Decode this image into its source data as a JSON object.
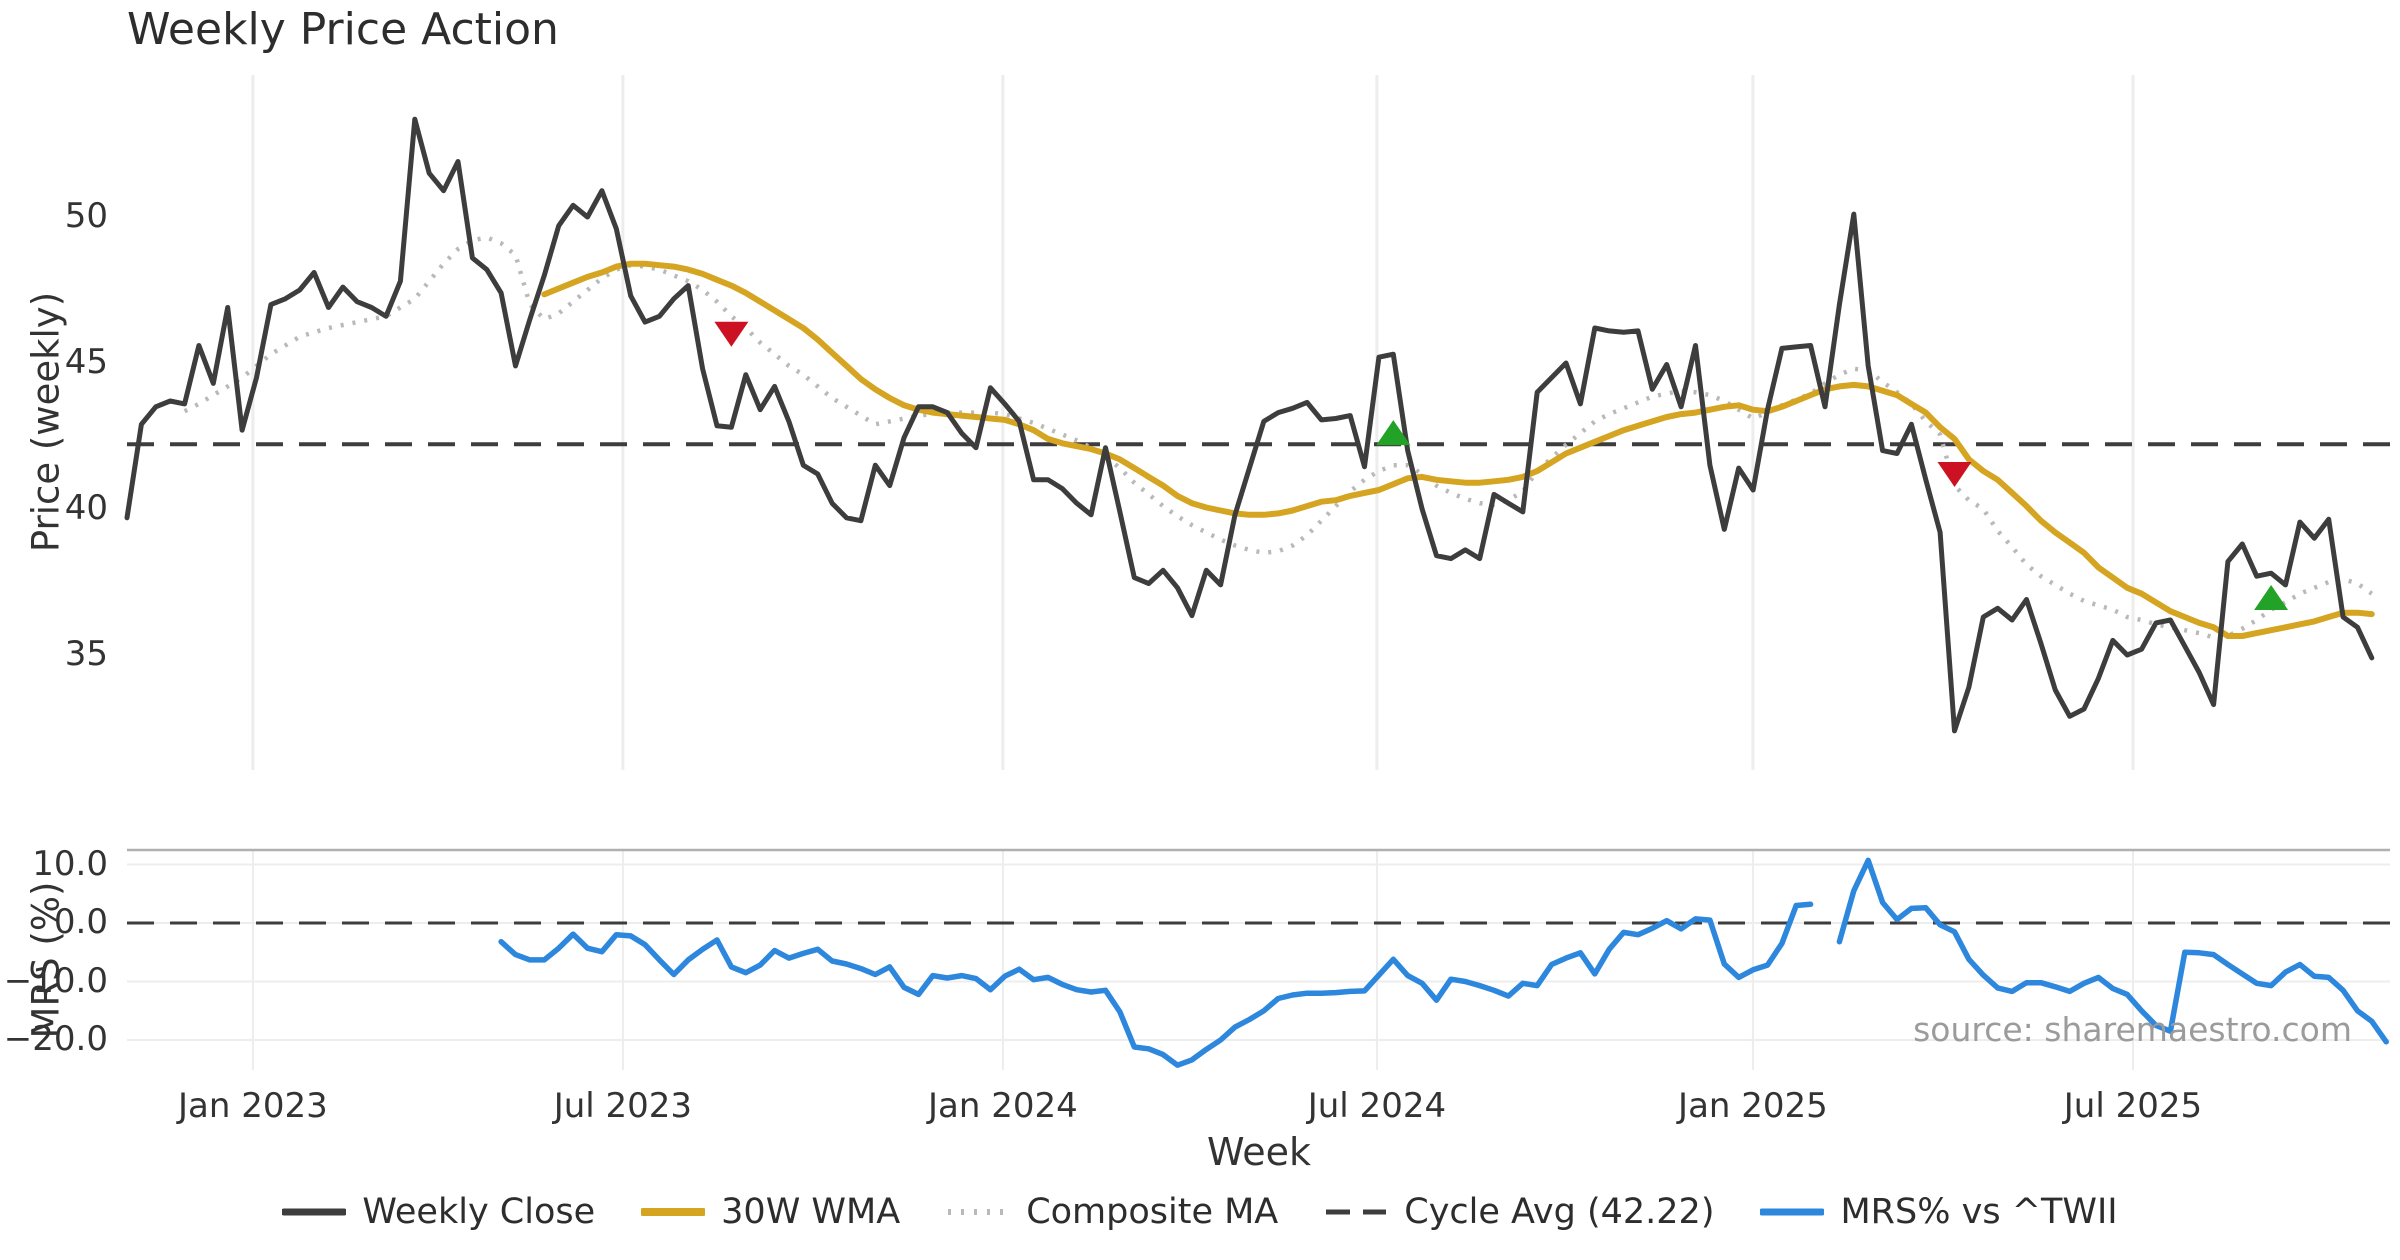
{
  "title": "Weekly Price Action",
  "source": "source: sharemaestro.com",
  "xlabel": "Week",
  "colors": {
    "close": "#3d3d3d",
    "wma": "#d5a421",
    "composite": "#b9b9b9",
    "cycle_dash": "#3d3d3d",
    "mrs": "#2d87dd",
    "sell_marker": "#cc1122",
    "buy_marker": "#22a226",
    "grid": "#ededed",
    "panel_border": "#b0b0b0",
    "text": "#333333",
    "source_text": "#9b9b9b"
  },
  "top_panel": {
    "ylabel": "Price (weekly)",
    "yticks": [
      {
        "label": "50",
        "value": 50
      },
      {
        "label": "45",
        "value": 45
      },
      {
        "label": "40",
        "value": 40
      },
      {
        "label": "35",
        "value": 35
      }
    ],
    "cycle_avg_value": 42.22
  },
  "bottom_panel": {
    "ylabel": "MRS (%)",
    "yticks": [
      {
        "label": "10.0",
        "value": 10
      },
      {
        "label": "0.0",
        "value": 0
      },
      {
        "label": "−10.0",
        "value": -10
      },
      {
        "label": "−20.0",
        "value": -20
      }
    ],
    "zero_line_value": 0
  },
  "xticks": [
    {
      "label": "Jan 2023",
      "week": 8.75
    },
    {
      "label": "Jul 2023",
      "week": 34.46
    },
    {
      "label": "Jan 2024",
      "week": 60.87
    },
    {
      "label": "Jul 2024",
      "week": 86.86
    },
    {
      "label": "Jan 2025",
      "week": 112.99
    },
    {
      "label": "Jul 2025",
      "week": 139.4
    }
  ],
  "legend": [
    {
      "label": "Weekly Close",
      "style": "close"
    },
    {
      "label": "30W WMA",
      "style": "wma"
    },
    {
      "label": "Composite MA",
      "style": "composite"
    },
    {
      "label": "Cycle Avg (42.22)",
      "style": "cycle_dash"
    },
    {
      "label": "MRS% vs ^TWII",
      "style": "mrs"
    }
  ],
  "chart_data": {
    "type": "line",
    "x_axis": "weekly index (0 = first plotted week, ~Nov 2022; month gridlines per xticks)",
    "top_ylim": [
      31.0,
      54.9
    ],
    "bottom_ylim": [
      -25.1,
      12.5
    ],
    "grid": "vertical month gridlines on price panel; horizontal tick gridlines on MRS panel",
    "legend_position": "bottom center",
    "series": [
      {
        "name": "Weekly Close",
        "panel": "price",
        "start_week": 0,
        "values": [
          39.7,
          42.9,
          43.5,
          43.7,
          43.6,
          45.6,
          44.3,
          46.9,
          42.7,
          44.5,
          47.0,
          47.2,
          47.5,
          48.1,
          46.9,
          47.6,
          47.1,
          46.9,
          46.6,
          47.8,
          53.35,
          51.5,
          50.9,
          51.9,
          48.6,
          48.2,
          47.4,
          44.9,
          46.5,
          48.0,
          49.7,
          50.4,
          50.0,
          50.9,
          49.6,
          47.3,
          46.4,
          46.6,
          47.2,
          47.65,
          44.8,
          42.85,
          42.8,
          44.6,
          43.4,
          44.2,
          43.0,
          41.5,
          41.2,
          40.2,
          39.7,
          39.6,
          41.5,
          40.8,
          42.45,
          43.5,
          43.5,
          43.3,
          42.6,
          42.1,
          44.15,
          43.6,
          43.0,
          41.0,
          41.0,
          40.7,
          40.2,
          39.8,
          42.1,
          39.9,
          37.65,
          37.45,
          37.9,
          37.3,
          36.35,
          37.9,
          37.4,
          39.8,
          41.4,
          43.0,
          43.3,
          43.45,
          43.65,
          43.05,
          43.1,
          43.2,
          41.45,
          45.2,
          45.3,
          42.0,
          40.0,
          38.4,
          38.3,
          38.6,
          38.3,
          40.5,
          40.2,
          39.9,
          44.0,
          44.5,
          45.0,
          43.6,
          46.2,
          46.1,
          46.05,
          46.1,
          44.1,
          44.95,
          43.5,
          45.6,
          41.5,
          39.3,
          41.4,
          40.65,
          43.4,
          45.5,
          45.55,
          45.6,
          43.5,
          47.0,
          50.1,
          44.9,
          42.0,
          41.9,
          42.9,
          41.0,
          39.2,
          32.4,
          33.9,
          36.3,
          36.6,
          36.2,
          36.9,
          35.4,
          33.8,
          32.9,
          33.15,
          34.2,
          35.5,
          35.0,
          35.2,
          36.1,
          36.2,
          35.3,
          34.4,
          33.3,
          38.2,
          38.8,
          37.7,
          37.8,
          37.4,
          39.55,
          39.0,
          39.65,
          36.3,
          35.95,
          34.9
        ]
      },
      {
        "name": "30W WMA",
        "panel": "price",
        "start_week": 29,
        "values": [
          47.35,
          47.55,
          47.75,
          47.95,
          48.1,
          48.3,
          48.4,
          48.4,
          48.35,
          48.3,
          48.2,
          48.05,
          47.85,
          47.65,
          47.4,
          47.1,
          46.8,
          46.5,
          46.2,
          45.8,
          45.35,
          44.9,
          44.45,
          44.1,
          43.8,
          43.55,
          43.4,
          43.3,
          43.25,
          43.2,
          43.15,
          43.1,
          43.05,
          42.9,
          42.7,
          42.4,
          42.25,
          42.15,
          42.05,
          41.9,
          41.7,
          41.4,
          41.1,
          40.8,
          40.45,
          40.2,
          40.05,
          39.95,
          39.85,
          39.8,
          39.8,
          39.85,
          39.95,
          40.1,
          40.25,
          40.3,
          40.45,
          40.55,
          40.65,
          40.85,
          41.05,
          41.1,
          41.0,
          40.95,
          40.9,
          40.9,
          40.95,
          41.0,
          41.1,
          41.3,
          41.6,
          41.9,
          42.1,
          42.3,
          42.5,
          42.7,
          42.85,
          43.0,
          43.15,
          43.25,
          43.3,
          43.4,
          43.5,
          43.55,
          43.4,
          43.35,
          43.5,
          43.7,
          43.9,
          44.1,
          44.2,
          44.25,
          44.2,
          44.05,
          43.9,
          43.6,
          43.3,
          42.8,
          42.4,
          41.7,
          41.3,
          41.0,
          40.55,
          40.1,
          39.6,
          39.2,
          38.85,
          38.5,
          38.0,
          37.65,
          37.3,
          37.1,
          36.8,
          36.5,
          36.3,
          36.1,
          35.95,
          35.65,
          35.65,
          35.75,
          35.85,
          35.95,
          36.05,
          36.15,
          36.3,
          36.45,
          36.45,
          36.4
        ]
      },
      {
        "name": "Composite MA",
        "panel": "price",
        "start_week": 4,
        "values": [
          43.35,
          43.6,
          43.9,
          44.2,
          44.5,
          44.9,
          45.3,
          45.6,
          45.9,
          46.05,
          46.2,
          46.3,
          46.4,
          46.5,
          46.6,
          46.9,
          47.2,
          47.8,
          48.4,
          48.9,
          49.2,
          49.3,
          49.1,
          48.7,
          47.0,
          46.5,
          46.7,
          47.1,
          47.5,
          47.9,
          48.2,
          48.35,
          48.3,
          48.2,
          48.0,
          47.8,
          47.5,
          47.1,
          46.6,
          46.2,
          45.7,
          45.3,
          44.9,
          44.6,
          44.2,
          43.8,
          43.5,
          43.2,
          42.9,
          43.0,
          43.1,
          43.2,
          43.25,
          43.3,
          43.3,
          43.3,
          43.3,
          43.25,
          43.1,
          42.95,
          42.75,
          42.55,
          42.35,
          42.1,
          41.8,
          41.4,
          40.9,
          40.5,
          40.1,
          39.75,
          39.45,
          39.2,
          38.95,
          38.75,
          38.6,
          38.5,
          38.55,
          38.75,
          39.1,
          39.6,
          40.1,
          40.6,
          41.0,
          41.3,
          41.5,
          41.5,
          41.2,
          40.8,
          40.55,
          40.35,
          40.2,
          40.15,
          40.3,
          40.6,
          41.3,
          41.75,
          42.2,
          42.6,
          43.0,
          43.25,
          43.45,
          43.65,
          43.85,
          43.95,
          44.05,
          44.0,
          43.9,
          43.7,
          43.4,
          43.1,
          43.3,
          43.55,
          43.75,
          43.95,
          44.3,
          44.6,
          44.8,
          44.75,
          44.35,
          44.0,
          43.6,
          43.0,
          42.55,
          40.8,
          40.3,
          40.0,
          39.25,
          38.7,
          38.1,
          37.7,
          37.4,
          37.1,
          36.85,
          36.7,
          36.55,
          36.3,
          36.2,
          36.05,
          35.95,
          35.85,
          35.75,
          35.6,
          35.65,
          35.9,
          36.2,
          36.55,
          36.8,
          37.1,
          37.3,
          37.5,
          37.6,
          37.45,
          37.1
        ]
      },
      {
        "name": "MRS% vs ^TWII",
        "panel": "mrs",
        "start_week": 26,
        "values": [
          -3.2,
          -5.4,
          -6.3,
          -6.3,
          -4.3,
          -1.9,
          -4.3,
          -4.9,
          -2.0,
          -2.2,
          -3.7,
          -6.3,
          -8.8,
          -6.3,
          -4.5,
          -2.9,
          -7.5,
          -8.5,
          -7.2,
          -4.7,
          -6.0,
          -5.2,
          -4.5,
          -6.5,
          -7.0,
          -7.8,
          -8.8,
          -7.5,
          -11.0,
          -12.2,
          -9.0,
          -9.4,
          -9.0,
          -9.5,
          -11.4,
          -9.1,
          -7.9,
          -9.7,
          -9.3,
          -10.5,
          -11.4,
          -11.8,
          -11.5,
          -15.2,
          -21.2,
          -21.5,
          -22.5,
          -24.3,
          -23.4,
          -21.6,
          -20.0,
          -17.8,
          -16.5,
          -15.0,
          -12.9,
          -12.3,
          -12.0,
          -12.0,
          -11.9,
          -11.7,
          -11.6,
          -8.9,
          -6.2,
          -9.0,
          -10.3,
          -13.2,
          -9.6,
          -10.0,
          -10.7,
          -11.5,
          -12.5,
          -10.3,
          -10.7,
          -7.1,
          -6.0,
          -5.1,
          -8.7,
          -4.5,
          -1.6,
          -2.0,
          -0.9,
          0.4,
          -1.0,
          0.7,
          0.5,
          -7.0,
          -9.3,
          -8.0,
          -7.2,
          -3.5,
          3.0,
          3.2,
          null,
          -3.2,
          5.5,
          10.7,
          3.5,
          0.6,
          2.5,
          2.6,
          -0.3,
          -1.5,
          -6.2,
          -8.9,
          -11.1,
          -11.7,
          -10.2,
          -10.2,
          -10.9,
          -11.7,
          -10.3,
          -9.3,
          -11.2,
          -12.2,
          -15.0,
          -17.5,
          -18.5,
          -5.0,
          -5.1,
          -5.4,
          -7.1,
          -8.7,
          -10.3,
          -10.7,
          -8.4,
          -7.1,
          -9.1,
          -9.3,
          -11.5,
          -15.0,
          -16.8,
          -20.3
        ]
      }
    ],
    "markers": {
      "sell": [
        {
          "week": 42,
          "value": 46.0
        },
        {
          "week": 127,
          "value": 41.2
        }
      ],
      "buy": [
        {
          "week": 88,
          "value": 42.6
        },
        {
          "week": 149,
          "value": 36.95
        }
      ]
    }
  }
}
